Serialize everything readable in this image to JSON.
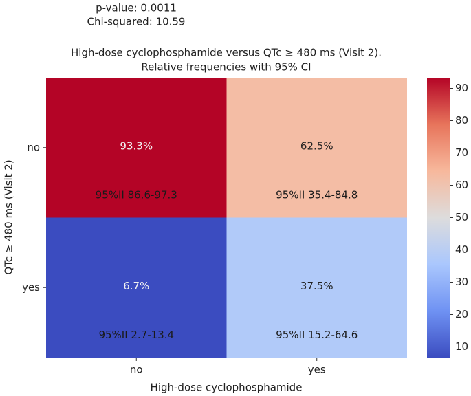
{
  "chart_data": {
    "type": "heatmap",
    "stats": [
      "p-value: 0.0011",
      "Chi-squared: 10.59"
    ],
    "title": "High-dose cyclophosphamide versus QTc ≥ 480 ms (Visit 2).",
    "subtitle": "Relative frequencies with 95% CI",
    "x_label": "High-dose cyclophosphamide",
    "y_label": "QTc ≥ 480 ms (Visit 2)",
    "x_categories": [
      "no",
      "yes"
    ],
    "y_categories": [
      "no",
      "yes"
    ],
    "values": [
      [
        93.3,
        62.5
      ],
      [
        6.7,
        37.5
      ]
    ],
    "value_labels": [
      [
        "93.3%",
        "62.5%"
      ],
      [
        "6.7%",
        "37.5%"
      ]
    ],
    "ci_labels": [
      [
        "95%II 86.6-97.3",
        "95%II 35.4-84.8"
      ],
      [
        "95%II 2.7-13.4",
        "95%II 15.2-64.6"
      ]
    ],
    "zlim": [
      6.7,
      93.3
    ],
    "zticks": [
      10,
      20,
      30,
      40,
      50,
      60,
      70,
      80,
      90
    ],
    "colormap": [
      "#3b4cc0",
      "#6f92f3",
      "#aac7fd",
      "#dddcdc",
      "#f7b89c",
      "#e7745b",
      "#b40426"
    ]
  }
}
